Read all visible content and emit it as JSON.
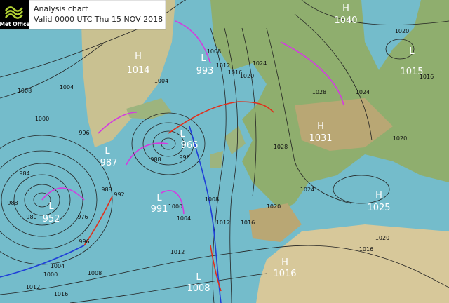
{
  "header": {
    "logo": "Met Office",
    "title": "Analysis chart",
    "valid": "Valid 0000 UTC Thu 15 NOV 2018"
  },
  "pressure_centres": [
    {
      "kind": "H",
      "value": 1040
    },
    {
      "kind": "L",
      "value": 1015
    },
    {
      "kind": "H",
      "value": 1014
    },
    {
      "kind": "L",
      "value": 993
    },
    {
      "kind": "L",
      "value": 966
    },
    {
      "kind": "L",
      "value": 987
    },
    {
      "kind": "H",
      "value": 1031
    },
    {
      "kind": "L",
      "value": 991
    },
    {
      "kind": "L",
      "value": 952
    },
    {
      "kind": "H",
      "value": 1025
    },
    {
      "kind": "H",
      "value": 1016
    },
    {
      "kind": "L",
      "value": 1008
    }
  ],
  "isobar_labels": [
    1008,
    1004,
    1000,
    996,
    1004,
    1008,
    1012,
    1016,
    1020,
    1024,
    1028,
    1028,
    1024,
    1020,
    1016,
    1012,
    1016,
    1012,
    1008,
    1004,
    1000,
    996,
    992,
    988,
    984,
    980,
    988,
    976,
    1000,
    1004,
    1008,
    1012,
    1016,
    988,
    996,
    1020,
    1016,
    1024,
    1020,
    1020
  ]
}
